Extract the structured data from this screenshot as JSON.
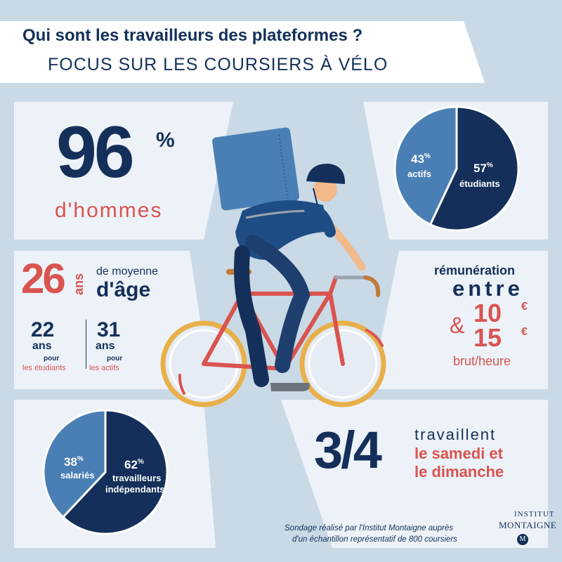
{
  "header": {
    "title": "Qui sont les travailleurs des plateformes ?",
    "subtitle": "FOCUS SUR LES COURSIERS À VÉLO"
  },
  "gender": {
    "value": "96",
    "percent_sign": "%",
    "label": "d'hommes"
  },
  "status_pie": {
    "slices": [
      {
        "value": "57",
        "label": "étudiants",
        "fraction": 0.57,
        "color": "#14305a"
      },
      {
        "value": "43",
        "label": "actifs",
        "fraction": 0.43,
        "color": "#4a7fb5"
      }
    ],
    "percent_sign": "%"
  },
  "age": {
    "value": "26",
    "unit": "ans",
    "line1": "de moyenne",
    "line2": "d'âge",
    "students": {
      "value": "22",
      "unit": "ans",
      "pour": "pour",
      "label": "les étudiants"
    },
    "workers": {
      "value": "31",
      "unit": "ans",
      "pour": "pour",
      "label": "les actifs"
    }
  },
  "pay": {
    "line1": "rémunération",
    "line2": "entre",
    "amp": "&",
    "low": "10",
    "high": "15",
    "currency": "€",
    "unit": "brut/heure"
  },
  "contract_pie": {
    "slices": [
      {
        "value": "62",
        "label_line1": "travailleurs",
        "label_line2": "indépendants",
        "fraction": 0.62,
        "color": "#14305a"
      },
      {
        "value": "38",
        "label_line1": "salariés",
        "fraction": 0.38,
        "color": "#4a7fb5"
      }
    ],
    "percent_sign": "%"
  },
  "weekend": {
    "value": "3/4",
    "line1": "travaillent",
    "line2": "le samedi et",
    "line3": "le dimanche"
  },
  "footnote": {
    "line1": "Sondage réalisé par l'Institut Montaigne auprès",
    "line2": "d'un échantillon représentatif de 800 coursiers"
  },
  "brand": {
    "line1": "INSTITUT",
    "line2": "MONTAIGNE",
    "monogram": "M"
  },
  "colors": {
    "navy": "#14305a",
    "red": "#d9534f",
    "mid_blue": "#4a7fb5",
    "panel": "#edf2f8",
    "background": "#c9d9e6"
  }
}
